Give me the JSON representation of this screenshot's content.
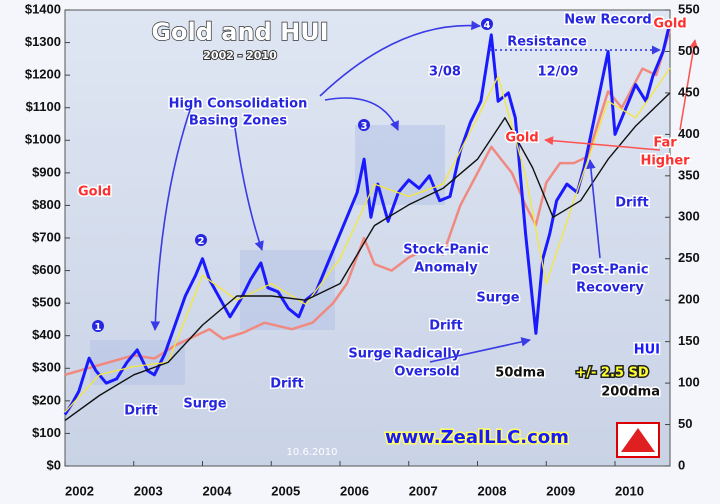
{
  "chart_data": {
    "type": "line",
    "title": "Gold and HUI",
    "subtitle": "2002 - 2010",
    "watermark": "www.ZealLLC.com",
    "date_stamp": "10.6.2010",
    "band_label": "+/- 2.5 SD",
    "xlim": [
      2002,
      2010.8
    ],
    "xticks": [
      2002,
      2003,
      2004,
      2005,
      2006,
      2007,
      2008,
      2009,
      2010
    ],
    "ylim": [
      0,
      1400
    ],
    "yticks": [
      {
        "value": 0,
        "label": "$0"
      },
      {
        "value": 100,
        "label": "$100"
      },
      {
        "value": 200,
        "label": "$200"
      },
      {
        "value": 300,
        "label": "$300"
      },
      {
        "value": 400,
        "label": "$400"
      },
      {
        "value": 500,
        "label": "$500"
      },
      {
        "value": 600,
        "label": "$600"
      },
      {
        "value": 700,
        "label": "$700"
      },
      {
        "value": 800,
        "label": "$800"
      },
      {
        "value": 900,
        "label": "$900"
      },
      {
        "value": 1000,
        "label": "$1000"
      },
      {
        "value": 1100,
        "label": "$1100"
      },
      {
        "value": 1200,
        "label": "$1200"
      },
      {
        "value": 1300,
        "label": "$1300"
      },
      {
        "value": 1400,
        "label": "$1400"
      }
    ],
    "y2lim": [
      0,
      550
    ],
    "y2ticks": [
      0,
      50,
      100,
      150,
      200,
      250,
      300,
      350,
      400,
      450,
      500,
      550
    ],
    "grid": false,
    "series": [
      {
        "name": "Gold",
        "color": "#f08a80",
        "width": 2.5,
        "x": [
          2002.0,
          2002.5,
          2003.0,
          2003.3,
          2003.6,
          2003.9,
          2004.1,
          2004.3,
          2004.6,
          2004.9,
          2005.3,
          2005.6,
          2005.9,
          2006.1,
          2006.35,
          2006.5,
          2006.75,
          2007.0,
          2007.3,
          2007.5,
          2007.75,
          2008.0,
          2008.2,
          2008.5,
          2008.7,
          2008.85,
          2009.0,
          2009.2,
          2009.4,
          2009.6,
          2009.9,
          2010.1,
          2010.4,
          2010.6,
          2010.8
        ],
        "values": [
          280,
          310,
          340,
          330,
          370,
          400,
          420,
          390,
          410,
          440,
          420,
          440,
          500,
          560,
          700,
          620,
          600,
          640,
          670,
          650,
          800,
          900,
          980,
          900,
          800,
          740,
          870,
          930,
          930,
          950,
          1150,
          1100,
          1220,
          1200,
          1340
        ]
      },
      {
        "name": "HUI",
        "color": "#1a1aff",
        "width": 3,
        "axis": "y2",
        "x": [
          2002.0,
          2002.1,
          2002.2,
          2002.35,
          2002.45,
          2002.6,
          2002.75,
          2002.9,
          2003.05,
          2003.2,
          2003.3,
          2003.45,
          2003.6,
          2003.75,
          2003.9,
          2004.0,
          2004.1,
          2004.3,
          2004.4,
          2004.55,
          2004.7,
          2004.85,
          2004.95,
          2005.1,
          2005.25,
          2005.4,
          2005.5,
          2005.65,
          2005.8,
          2005.95,
          2006.1,
          2006.25,
          2006.35,
          2006.45,
          2006.55,
          2006.7,
          2006.85,
          2007.0,
          2007.15,
          2007.3,
          2007.45,
          2007.6,
          2007.75,
          2007.9,
          2008.05,
          2008.2,
          2008.3,
          2008.45,
          2008.55,
          2008.7,
          2008.85,
          2008.95,
          2009.05,
          2009.15,
          2009.3,
          2009.45,
          2009.55,
          2009.7,
          2009.9,
          2010.0,
          2010.1,
          2010.3,
          2010.45,
          2010.55,
          2010.7,
          2010.8
        ],
        "values": [
          62,
          75,
          90,
          130,
          115,
          100,
          105,
          125,
          140,
          115,
          110,
          135,
          170,
          205,
          230,
          250,
          225,
          195,
          180,
          200,
          225,
          245,
          215,
          210,
          190,
          180,
          200,
          210,
          240,
          270,
          300,
          330,
          370,
          300,
          340,
          295,
          330,
          345,
          335,
          350,
          320,
          325,
          380,
          415,
          440,
          520,
          440,
          450,
          420,
          280,
          160,
          250,
          280,
          320,
          340,
          330,
          360,
          420,
          500,
          400,
          420,
          460,
          440,
          470,
          500,
          535
        ]
      },
      {
        "name": "50dma",
        "color": "#f5e63a",
        "width": 1.3,
        "axis": "y2",
        "x": [
          2002.0,
          2002.5,
          2003.0,
          2003.5,
          2004.0,
          2004.5,
          2005.0,
          2005.5,
          2006.0,
          2006.5,
          2007.0,
          2007.5,
          2008.0,
          2008.3,
          2008.7,
          2009.0,
          2009.4,
          2009.9,
          2010.3,
          2010.8
        ],
        "values": [
          65,
          110,
          120,
          125,
          230,
          200,
          220,
          195,
          250,
          340,
          325,
          340,
          420,
          470,
          350,
          220,
          320,
          440,
          420,
          480
        ]
      },
      {
        "name": "200dma",
        "color": "#111111",
        "width": 1.4,
        "axis": "y2",
        "x": [
          2002.0,
          2002.5,
          2003.0,
          2003.5,
          2004.0,
          2004.5,
          2005.0,
          2005.5,
          2006.0,
          2006.5,
          2007.0,
          2007.5,
          2008.0,
          2008.4,
          2008.8,
          2009.1,
          2009.5,
          2009.9,
          2010.3,
          2010.8
        ],
        "values": [
          55,
          85,
          110,
          125,
          170,
          205,
          205,
          200,
          220,
          290,
          315,
          335,
          370,
          420,
          360,
          300,
          320,
          370,
          410,
          450
        ]
      }
    ],
    "annotations": [
      "High Consolidation",
      "Basing Zones",
      "Drift",
      "Surge",
      "Drift",
      "Surge",
      "Drift",
      "Surge",
      "Drift",
      "Stock-Panic",
      "Anomaly",
      "Radically",
      "Oversold",
      "Post-Panic",
      "Recovery",
      "3/08",
      "Resistance",
      "12/09",
      "New Record",
      "Gold",
      "Gold",
      "Far",
      "Higher",
      "1",
      "2",
      "3",
      "4"
    ]
  }
}
